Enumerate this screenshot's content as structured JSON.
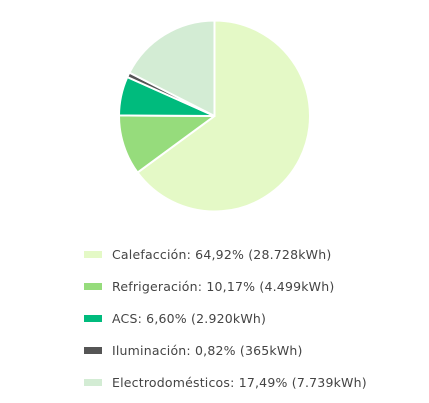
{
  "chart_data": {
    "type": "pie",
    "title": "",
    "slices": [
      {
        "label": "Calefacción: 64,92% (28.728kWh)",
        "value": 28728,
        "color": "#e4f9c6"
      },
      {
        "label": "Refrigeración: 10,17% (4.499kWh)",
        "value": 4499,
        "color": "#96dc7c"
      },
      {
        "label": "ACS: 6,60% (2.920kWh)",
        "value": 2920,
        "color": "#00bb7d"
      },
      {
        "label": "Iluminación: 0,82% (365kWh)",
        "value": 365,
        "color": "#555555"
      },
      {
        "label": "Electrodomésticos: 17,49% (7.739kWh)",
        "value": 7739,
        "color": "#d3ecd4"
      }
    ],
    "start_angle_deg": 0,
    "direction": "clockwise",
    "legend_position": "bottom"
  }
}
